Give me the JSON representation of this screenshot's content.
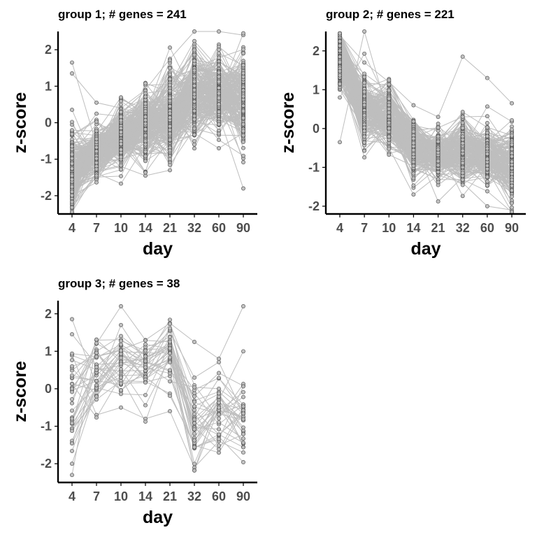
{
  "chart_data": [
    {
      "type": "line",
      "title": "group 1; # genes  = 241",
      "xlabel": "day",
      "ylabel": "z-score",
      "categories": [
        "4",
        "7",
        "10",
        "14",
        "21",
        "32",
        "60",
        "90"
      ],
      "y_ticks": [
        "-2",
        "-1",
        "0",
        "1",
        "2"
      ],
      "ylim": [
        -2.5,
        2.5
      ],
      "n_lines": 241,
      "line_color": "#bebebe",
      "point_fill": "#bebebe",
      "point_stroke": "#555555",
      "series_mean": [
        -1.3,
        -0.75,
        -0.4,
        -0.05,
        0.15,
        0.8,
        0.8,
        0.65
      ],
      "series_spread": [
        0.5,
        0.35,
        0.4,
        0.45,
        0.55,
        0.55,
        0.5,
        0.6
      ],
      "example_lines": [
        [
          1.65,
          -0.6,
          -0.1,
          0.2,
          0.5,
          1.0,
          0.6,
          0.3
        ],
        [
          1.35,
          0.55,
          0.4,
          0.9,
          1.75,
          2.5,
          2.5,
          2.4
        ],
        [
          -2.45,
          -1.35,
          -1.2,
          -1.45,
          -1.3,
          0.3,
          0.2,
          -1.8
        ]
      ]
    },
    {
      "type": "line",
      "title": "group 2; # genes  = 221",
      "xlabel": "day",
      "ylabel": "z-score",
      "categories": [
        "4",
        "7",
        "10",
        "14",
        "21",
        "32",
        "60",
        "90"
      ],
      "y_ticks": [
        "-2",
        "-1",
        "0",
        "1",
        "2"
      ],
      "ylim": [
        -2.2,
        2.5
      ],
      "n_lines": 221,
      "line_color": "#bebebe",
      "point_fill": "#bebebe",
      "point_stroke": "#555555",
      "series_mean": [
        1.9,
        0.5,
        0.35,
        -0.5,
        -0.7,
        -0.55,
        -0.7,
        -0.9
      ],
      "series_spread": [
        0.35,
        0.4,
        0.35,
        0.35,
        0.3,
        0.4,
        0.35,
        0.45
      ],
      "example_lines": [
        [
          -0.35,
          2.5,
          0.3,
          -0.6,
          -0.8,
          -0.5,
          -0.7,
          -0.8
        ],
        [
          2.4,
          1.7,
          1.2,
          0.6,
          0.3,
          1.85,
          1.3,
          0.65
        ],
        [
          1.0,
          0.0,
          -0.5,
          -1.7,
          -1.2,
          -1.4,
          -2.0,
          -2.1
        ]
      ]
    },
    {
      "type": "line",
      "title": "group 3; # genes  = 38",
      "xlabel": "day",
      "ylabel": "z-score",
      "categories": [
        "4",
        "7",
        "10",
        "14",
        "21",
        "32",
        "60",
        "90"
      ],
      "y_ticks": [
        "-2",
        "-1",
        "0",
        "1",
        "2"
      ],
      "ylim": [
        -2.5,
        2.35
      ],
      "n_lines": 38,
      "line_color": "#bebebe",
      "point_fill": "#bebebe",
      "point_stroke": "#555555",
      "series_mean": [
        -0.2,
        0.5,
        0.6,
        0.6,
        0.9,
        -0.9,
        -0.6,
        -0.7
      ],
      "series_spread": [
        0.9,
        0.45,
        0.55,
        0.4,
        0.45,
        0.75,
        0.55,
        0.6
      ],
      "example_lines": [
        [
          -2.3,
          1.2,
          2.2,
          1.3,
          1.75,
          1.25,
          0.8,
          2.2
        ],
        [
          0.9,
          -0.7,
          -0.5,
          -0.8,
          -0.6,
          -2.1,
          -1.4,
          -1.7
        ],
        [
          -2.0,
          0.0,
          1.7,
          0.7,
          1.2,
          -1.0,
          -0.3,
          1.0
        ]
      ]
    }
  ]
}
